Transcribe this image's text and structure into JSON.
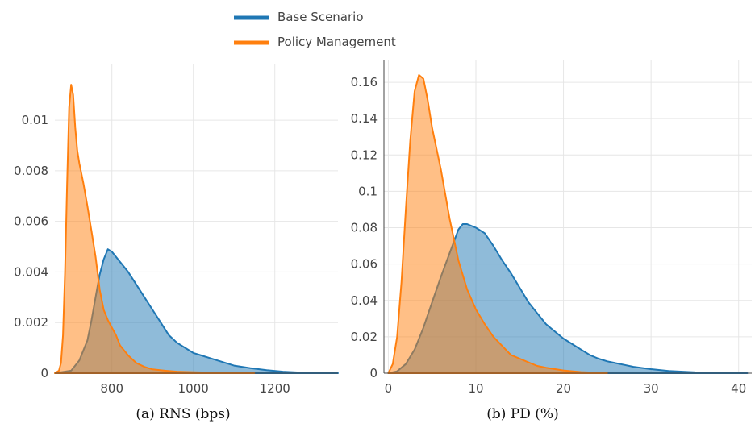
{
  "legend": [
    {
      "label": "Base Scenario",
      "color": "#1f77b4"
    },
    {
      "label": "Policy Management",
      "color": "#ff7f0e"
    }
  ],
  "captions": {
    "a": "(a) RNS (bps)",
    "b": "(b) PD (%)"
  },
  "chart_data": [
    {
      "type": "area",
      "xlim": [
        660,
        1355
      ],
      "ylim": [
        0,
        0.0122
      ],
      "xticks": [
        800,
        1000,
        1200
      ],
      "yticks": [
        0,
        0.002,
        0.004,
        0.006,
        0.008,
        0.01
      ],
      "xtick_labels": [
        "800",
        "1000",
        "1200"
      ],
      "ytick_labels": [
        "0",
        "0.002",
        "0.004",
        "0.006",
        "0.008",
        "0.01"
      ],
      "grid": true,
      "series": [
        {
          "name": "Base Scenario",
          "color": "#1f77b4",
          "x": [
            660,
            700,
            720,
            740,
            750,
            760,
            770,
            780,
            790,
            800,
            810,
            820,
            830,
            840,
            860,
            880,
            900,
            920,
            940,
            960,
            980,
            1000,
            1020,
            1040,
            1060,
            1080,
            1100,
            1140,
            1180,
            1220,
            1260,
            1300,
            1355
          ],
          "y": [
            0,
            0.0001,
            0.0005,
            0.0013,
            0.0021,
            0.003,
            0.0039,
            0.0045,
            0.0049,
            0.0048,
            0.0046,
            0.0044,
            0.0042,
            0.004,
            0.0035,
            0.003,
            0.0025,
            0.002,
            0.0015,
            0.0012,
            0.001,
            0.0008,
            0.0007,
            0.0006,
            0.0005,
            0.0004,
            0.0003,
            0.0002,
            0.00012,
            6e-05,
            3e-05,
            1e-05,
            0
          ]
        },
        {
          "name": "Policy Management",
          "color": "#ff7f0e",
          "x": [
            660,
            670,
            675,
            680,
            685,
            690,
            695,
            700,
            705,
            710,
            715,
            720,
            730,
            740,
            750,
            760,
            770,
            780,
            790,
            800,
            810,
            820,
            840,
            860,
            880,
            900,
            930,
            960,
            1000,
            1050,
            1100,
            1150
          ],
          "y": [
            0,
            0.0001,
            0.0004,
            0.0015,
            0.004,
            0.0075,
            0.0105,
            0.0114,
            0.011,
            0.0097,
            0.0088,
            0.0083,
            0.0075,
            0.0066,
            0.0056,
            0.0046,
            0.0033,
            0.0025,
            0.0021,
            0.0018,
            0.0015,
            0.0011,
            0.0007,
            0.0004,
            0.00025,
            0.00015,
            0.0001,
            6e-05,
            4e-05,
            2e-05,
            1e-05,
            0
          ]
        }
      ]
    },
    {
      "type": "area",
      "xlim": [
        -0.5,
        41.5
      ],
      "ylim": [
        0,
        0.172
      ],
      "xticks": [
        0,
        10,
        20,
        30,
        40
      ],
      "yticks": [
        0,
        0.02,
        0.04,
        0.06,
        0.08,
        0.1,
        0.12,
        0.14,
        0.16
      ],
      "xtick_labels": [
        "0",
        "10",
        "20",
        "30",
        "40"
      ],
      "ytick_labels": [
        "0",
        "0.02",
        "0.04",
        "0.06",
        "0.08",
        "0.1",
        "0.12",
        "0.14",
        "0.16"
      ],
      "grid": true,
      "series": [
        {
          "name": "Base Scenario",
          "color": "#1f77b4",
          "x": [
            0,
            1,
            2,
            3,
            4,
            5,
            6,
            7,
            8,
            8.5,
            9,
            10,
            11,
            12,
            13,
            14,
            15,
            16,
            17,
            18,
            19,
            20,
            21,
            22,
            23,
            24,
            25,
            26,
            27,
            28,
            30,
            32,
            35,
            38,
            41
          ],
          "y": [
            0,
            0.001,
            0.005,
            0.013,
            0.025,
            0.039,
            0.053,
            0.066,
            0.079,
            0.082,
            0.082,
            0.08,
            0.077,
            0.07,
            0.062,
            0.055,
            0.047,
            0.039,
            0.033,
            0.027,
            0.023,
            0.019,
            0.016,
            0.013,
            0.01,
            0.008,
            0.0065,
            0.0055,
            0.0045,
            0.0035,
            0.0022,
            0.0012,
            0.0005,
            0.0002,
            0
          ]
        },
        {
          "name": "Policy Management",
          "color": "#ff7f0e",
          "x": [
            0,
            0.5,
            1,
            1.5,
            2,
            2.5,
            3,
            3.5,
            4,
            4.5,
            5,
            6,
            7,
            8,
            9,
            10,
            11,
            12,
            13,
            14,
            15,
            16,
            17,
            18,
            20,
            22,
            25
          ],
          "y": [
            0,
            0.005,
            0.02,
            0.05,
            0.09,
            0.128,
            0.155,
            0.164,
            0.162,
            0.15,
            0.135,
            0.112,
            0.085,
            0.062,
            0.046,
            0.035,
            0.027,
            0.02,
            0.015,
            0.01,
            0.008,
            0.006,
            0.004,
            0.003,
            0.0015,
            0.0006,
            0
          ]
        }
      ]
    }
  ]
}
